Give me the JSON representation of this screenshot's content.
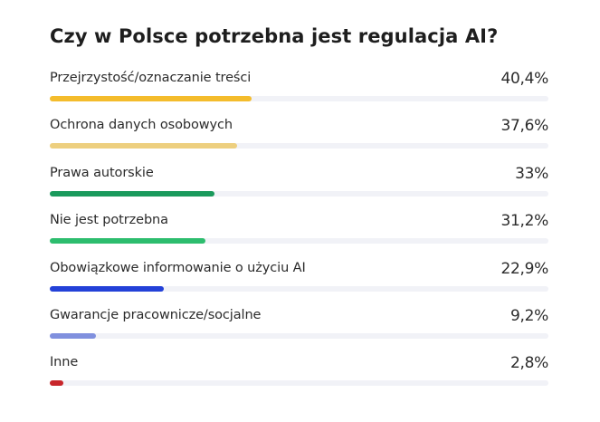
{
  "chart_data": {
    "type": "bar",
    "orientation": "horizontal",
    "title": "Czy w Polsce potrzebna jest regulacja AI?",
    "xlabel": "",
    "ylabel": "",
    "xlim": [
      0,
      100
    ],
    "grid": false,
    "legend": null,
    "categories": [
      "Przejrzystość/oznaczanie treści",
      "Ochrona danych osobowych",
      "Prawa autorskie",
      "Nie jest potrzebna",
      "Obowiązkowe informowanie o użyciu AI",
      "Gwarancje pracownicze/socjalne",
      "Inne"
    ],
    "values": [
      40.4,
      37.6,
      33,
      31.2,
      22.9,
      9.2,
      2.8
    ],
    "value_labels": [
      "40,4%",
      "37,6%",
      "33%",
      "31,2%",
      "22,9%",
      "9,2%",
      "2,8%"
    ],
    "colors": [
      "#F4BC2C",
      "#EDCF7F",
      "#1A9A5C",
      "#2DBD6E",
      "#2341D8",
      "#8090DE",
      "#C8262B"
    ],
    "track_color": "#F1F2F7",
    "unit": "%"
  },
  "header": {
    "title": "Czy w Polsce potrzebna jest regulacja AI?"
  },
  "rows": [
    {
      "label": "Przejrzystość/oznaczanie treści",
      "value": "40,4%"
    },
    {
      "label": "Ochrona danych osobowych",
      "value": "37,6%"
    },
    {
      "label": "Prawa autorskie",
      "value": "33%"
    },
    {
      "label": "Nie jest potrzebna",
      "value": "31,2%"
    },
    {
      "label": "Obowiązkowe informowanie o użyciu AI",
      "value": "22,9%"
    },
    {
      "label": "Gwarancje pracownicze/socjalne",
      "value": "9,2%"
    },
    {
      "label": "Inne",
      "value": "2,8%"
    }
  ]
}
